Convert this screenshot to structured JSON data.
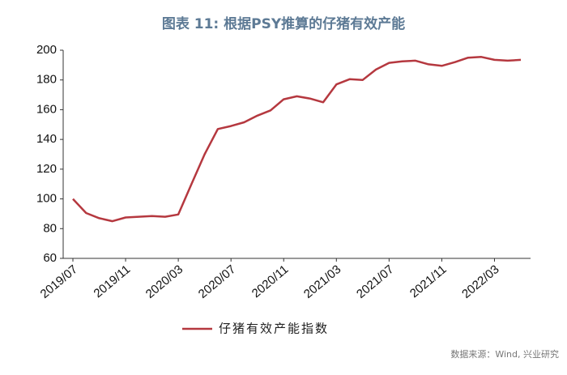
{
  "chart_data": {
    "type": "line",
    "title": "图表 11: 根据PSY推算的仔猪有效产能",
    "categories": [
      "2019/07",
      null,
      null,
      null,
      "2019/11",
      null,
      null,
      null,
      "2020/03",
      null,
      null,
      null,
      "2020/07",
      null,
      null,
      null,
      "2020/11",
      null,
      null,
      null,
      "2021/03",
      null,
      null,
      null,
      "2021/07",
      null,
      null,
      null,
      "2021/11",
      null,
      null,
      null,
      "2022/03",
      null,
      null
    ],
    "series": [
      {
        "name": "仔猪有效产能指数",
        "color": "#b5383f",
        "values": [
          100,
          90.5,
          87,
          85,
          87.5,
          88,
          88.5,
          88,
          89.5,
          110,
          130,
          147,
          149,
          151.5,
          156,
          159.5,
          167,
          169,
          167.5,
          165,
          177,
          180.5,
          180,
          187,
          191.5,
          192.5,
          193,
          190.5,
          189.5,
          192,
          195,
          195.5,
          193.5,
          193,
          193.5
        ]
      }
    ],
    "ylim": [
      60,
      200
    ],
    "yticks": [
      60,
      80,
      100,
      120,
      140,
      160,
      180,
      200
    ],
    "source": "数据来源：Wind, 兴业研究"
  }
}
